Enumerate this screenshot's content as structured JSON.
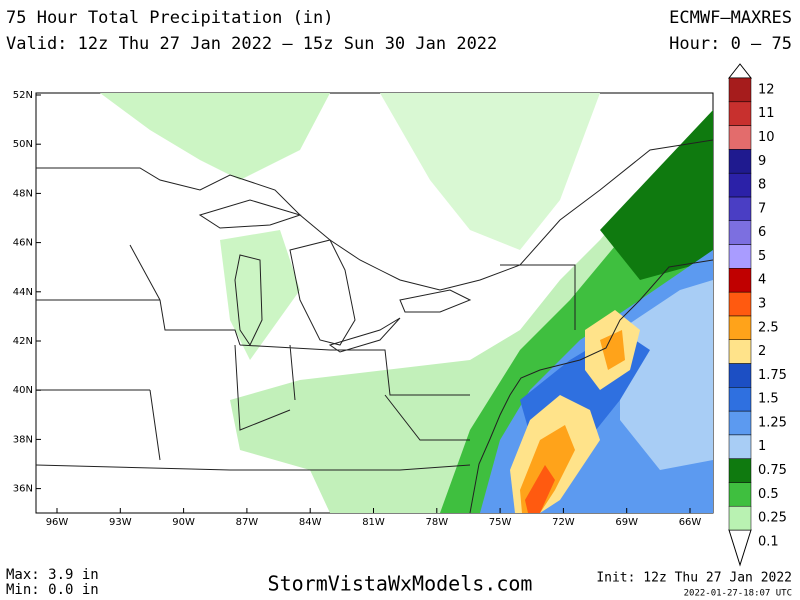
{
  "header": {
    "title": "75 Hour Total Precipitation (in)",
    "valid": "Valid: 12z Thu 27 Jan 2022 – 15z Sun 30 Jan 2022",
    "model": "ECMWF–MAXRES",
    "hour": "Hour: 0 – 75"
  },
  "map": {
    "lat_labels": [
      "52N",
      "50N",
      "48N",
      "46N",
      "44N",
      "42N",
      "40N",
      "38N",
      "36N"
    ],
    "lon_labels": [
      "96W",
      "93W",
      "90W",
      "87W",
      "84W",
      "81W",
      "78W",
      "75W",
      "72W",
      "69W",
      "66W"
    ]
  },
  "colorbar": {
    "levels": [
      {
        "value": 0.1,
        "color": "#ffffff"
      },
      {
        "value": 0.25,
        "color": "#b9f2b2"
      },
      {
        "value": 0.5,
        "color": "#3fbf3f"
      },
      {
        "value": 0.75,
        "color": "#0f7a0f"
      },
      {
        "value": 1,
        "color": "#a8cdf5"
      },
      {
        "value": 1.25,
        "color": "#5c9af0"
      },
      {
        "value": 1.5,
        "color": "#2f70e0"
      },
      {
        "value": 1.75,
        "color": "#1c4fc4"
      },
      {
        "value": 2,
        "color": "#ffe38a"
      },
      {
        "value": 2.5,
        "color": "#ffa31a"
      },
      {
        "value": 3,
        "color": "#ff5a10"
      },
      {
        "value": 4,
        "color": "#c00000"
      },
      {
        "value": 5,
        "color": "#a99cff"
      },
      {
        "value": 6,
        "color": "#7c6fe0"
      },
      {
        "value": 7,
        "color": "#4a3ec4"
      },
      {
        "value": 8,
        "color": "#2b21a8"
      },
      {
        "value": 9,
        "color": "#1f1a8f"
      },
      {
        "value": 10,
        "color": "#e36c6c"
      },
      {
        "value": 11,
        "color": "#c8302e"
      },
      {
        "value": 12,
        "color": "#a61c1c"
      }
    ]
  },
  "footer": {
    "max": "Max: 3.9 in",
    "min": "Min: 0.0 in",
    "site": "StormVistaWxModels.com",
    "init": "Init: 12z Thu 27 Jan 2022",
    "stamp": "2022-01-27-18:07 UTC"
  }
}
